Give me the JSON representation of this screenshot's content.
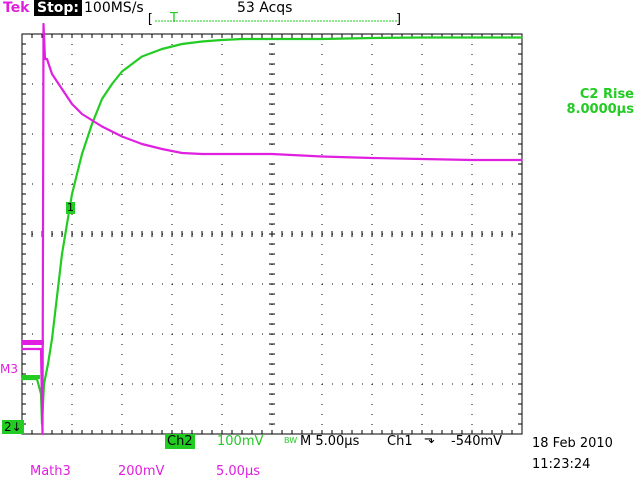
{
  "header": {
    "brand": "Tek",
    "state": "Stop:",
    "sample_rate": "100MS/s",
    "acquisitions": "53 Acqs",
    "trigger_marker": "T",
    "bracket_left": "[",
    "bracket_right": "]"
  },
  "measurement": {
    "label": "C2 Rise",
    "value": "8.0000µs"
  },
  "markers": {
    "ch1": "1",
    "math3": "M3",
    "ch2": "2↓"
  },
  "status": {
    "ch2_label": "Ch2",
    "ch2_scale": "100mV",
    "bw_symbol": "BW",
    "timebase": "M 5.00µs",
    "trig_source": "Ch1",
    "trig_slope_symbol": "⬎",
    "trig_level": "-540mV",
    "date": "18 Feb 2010",
    "time": "11:23:24",
    "math_label": "Math3",
    "math_scale": "200mV",
    "math_time": "5.00µs"
  },
  "colors": {
    "ch2": "#22cc22",
    "math3": "#e020e0",
    "grid": "#000000"
  },
  "chart_data": {
    "type": "line",
    "x_unit": "µs",
    "xlim": [
      0,
      50
    ],
    "ylim_divisions": [
      -4,
      4
    ],
    "grid": true,
    "series": [
      {
        "name": "Ch2",
        "color": "#22cc22",
        "x": [
          0,
          1.5,
          1.9,
          2.0,
          2.2,
          2.6,
          3,
          4,
          5,
          6,
          7,
          8,
          9,
          10,
          12,
          14,
          16,
          18,
          20,
          22,
          25,
          30,
          35,
          40,
          45,
          50
        ],
        "y": [
          -2.9,
          -2.9,
          -3.2,
          -3.8,
          -3.0,
          -2.6,
          -2.1,
          -0.4,
          0.8,
          1.6,
          2.2,
          2.7,
          3.0,
          3.25,
          3.55,
          3.7,
          3.8,
          3.85,
          3.88,
          3.9,
          3.9,
          3.9,
          3.92,
          3.93,
          3.93,
          3.93
        ]
      },
      {
        "name": "Math3",
        "color": "#e020e0",
        "x": [
          0,
          1.9,
          2.05,
          2.15,
          2.3,
          2.5,
          3,
          4,
          5,
          6,
          8,
          10,
          12,
          14,
          16,
          18,
          20,
          25,
          30,
          35,
          40,
          45,
          50
        ],
        "y": [
          -2.3,
          -2.3,
          -4.0,
          4.2,
          3.5,
          3.5,
          3.2,
          2.9,
          2.6,
          2.4,
          2.15,
          1.95,
          1.8,
          1.7,
          1.62,
          1.6,
          1.6,
          1.6,
          1.55,
          1.52,
          1.5,
          1.48,
          1.48
        ]
      }
    ]
  }
}
